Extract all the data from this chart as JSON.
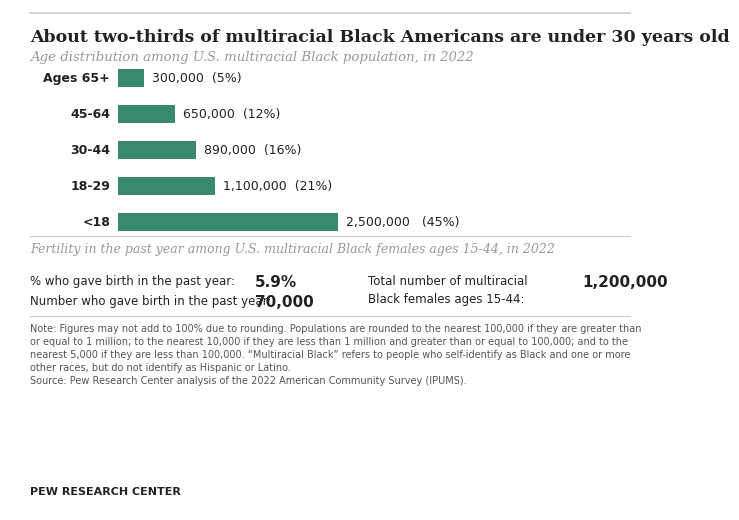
{
  "title": "About two-thirds of multiracial Black Americans are under 30 years old",
  "subtitle": "Age distribution among U.S. multiracial Black population, in 2022",
  "bar_categories": [
    "Ages 65+",
    "45-64",
    "30-44",
    "18-29",
    "<18"
  ],
  "bar_values": [
    300000,
    650000,
    890000,
    1100000,
    2500000
  ],
  "bar_labels": [
    "300,000  (5%)",
    "650,000  (12%)",
    "890,000  (16%)",
    "1,100,000  (21%)",
    "2,500,000   (45%)"
  ],
  "bar_color": "#3a8a72",
  "bar_max": 2500000,
  "fertility_title": "Fertility in the past year among U.S. multiracial Black females ages 15-44, in 2022",
  "stat1_label": "% who gave birth in the past year:",
  "stat1_value": "5.9%",
  "stat2_label": "Number who gave birth in the past year:",
  "stat2_value": "70,000",
  "stat3_label": "Total number of multiracial\nBlack females ages 15-44:",
  "stat3_value": "1,200,000",
  "note_lines": [
    "Note: Figures may not add to 100% due to rounding. Populations are rounded to the nearest 100,000 if they are greater than",
    "or equal to 1 million; to the nearest 10,000 if they are less than 1 million and greater than or equal to 100,000; and to the",
    "nearest 5,000 if they are less than 100,000. “Multiracial Black” refers to people who self-identify as Black and one or more",
    "other races, but do not identify as Hispanic or Latino.",
    "Source: Pew Research Center analysis of the 2022 American Community Survey (IPUMS)."
  ],
  "branding": "PEW RESEARCH CENTER",
  "bg_color": "#ffffff",
  "text_color": "#222222",
  "divider_color": "#cccccc"
}
